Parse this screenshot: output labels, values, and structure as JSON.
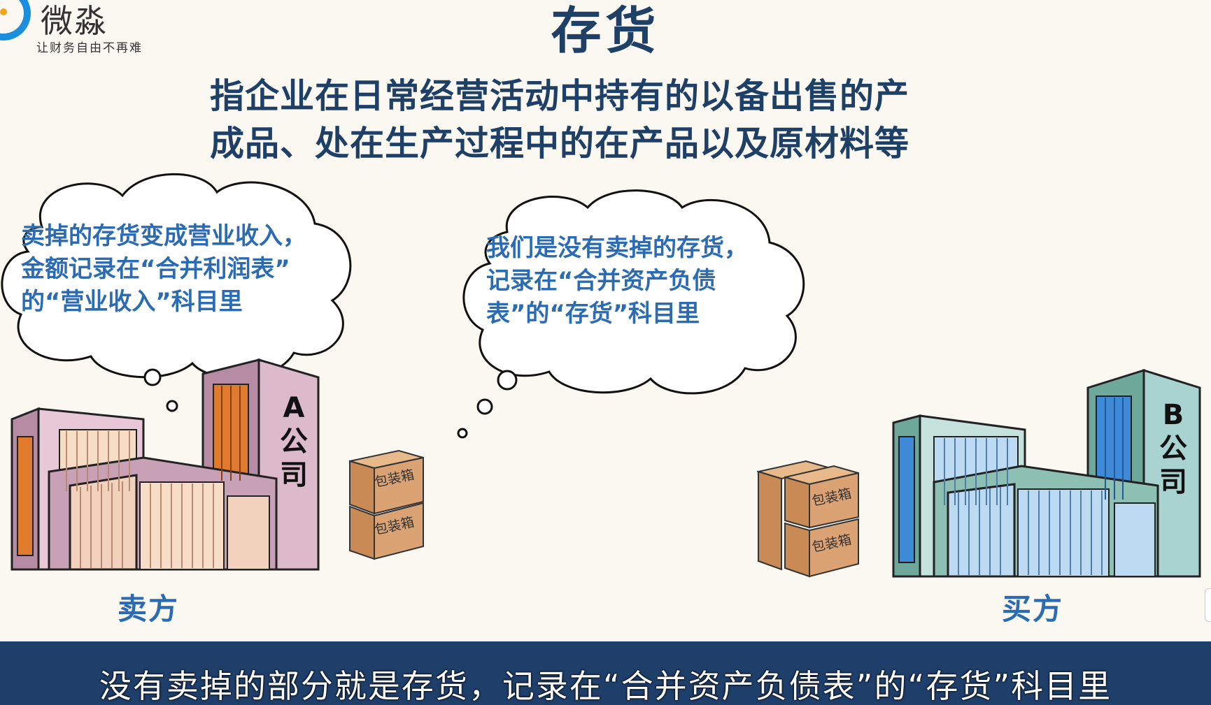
{
  "logo": {
    "icon": "logo-ring-icon",
    "name": "微淼",
    "slogan": "让财务自由不再难",
    "brand_color": "#1b8ee0"
  },
  "title": "存货",
  "definition": {
    "line1": "指企业在日常经营活动中持有的以备出售的产",
    "line2": "成品、处在生产过程中的在产品以及原材料等"
  },
  "seller_bubble": {
    "line1": "卖掉的存货变成营业收入，",
    "line2": "金额记录在“合并利润表”",
    "line3": "的“营业收入”科目里"
  },
  "inventory_bubble": {
    "line1": "我们是没有卖掉的存货，",
    "line2": "记录在“合并资产负债",
    "line3": "表”的“存货”科目里"
  },
  "company_a": {
    "sign_letter": "A",
    "sign_word": "公司",
    "role": "卖方",
    "color": "#c9a1b6"
  },
  "company_b": {
    "sign_letter": "B",
    "sign_word": "公司",
    "role": "买方",
    "color": "#a9d3d0"
  },
  "box_label": "包装箱",
  "caption": "没有卖掉的部分就是存货，记录在“合并资产负债表”的“存货”科目里",
  "colors": {
    "title": "#1e3f66",
    "bubble_text": "#2b6bb3",
    "footer": "#1f3f6b"
  }
}
